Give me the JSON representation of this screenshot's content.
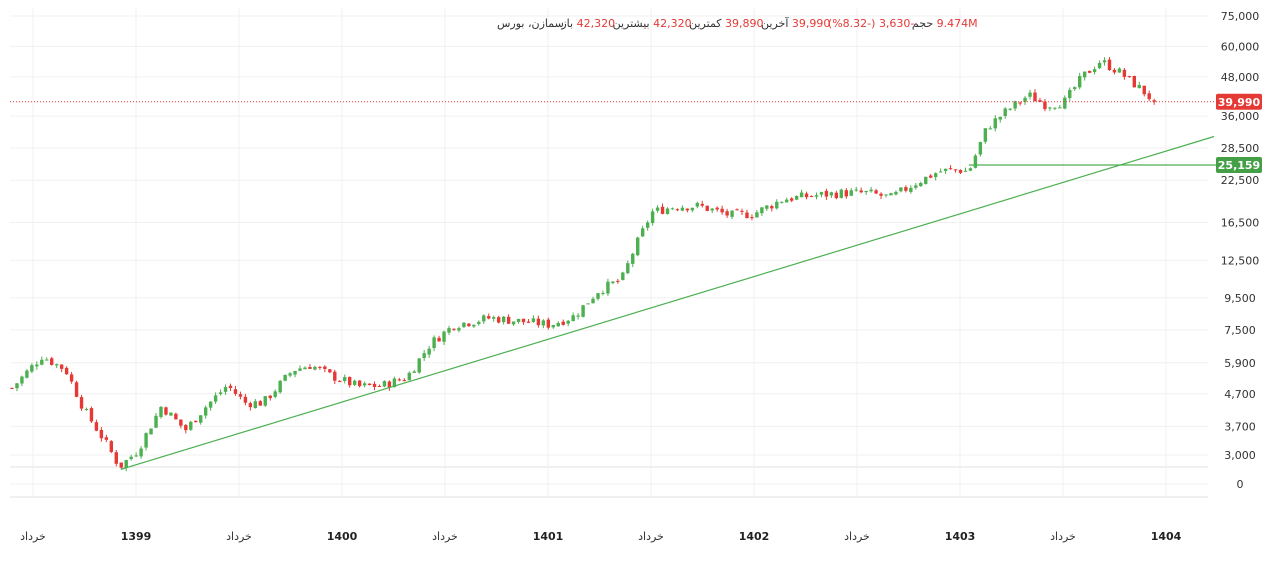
{
  "header": {
    "symbol": "سمازن، بورس",
    "open_label": "باز",
    "open_value": "42,320",
    "high_label": "بیشترین",
    "high_value": "42,320",
    "low_label": "کمترین",
    "low_value": "39,890",
    "last_label": "آخرین",
    "last_value": "39,990",
    "change": "-3,630 (-8.32%)",
    "volume_label": "حجم",
    "volume_value": "9.474M"
  },
  "colors": {
    "up": "#4caf50",
    "down": "#e53935",
    "trendline": "#4caf50",
    "last_price_badge": "#e53935",
    "level_badge": "#43a047",
    "grid": "#f0f0f0",
    "text": "#333333",
    "header_value": "#e53935"
  },
  "chart_data": {
    "type": "candlestick",
    "y_scale": "log",
    "y_ticks": [
      "75,000",
      "60,000",
      "48,000",
      "36,000",
      "28,500",
      "22,500",
      "16,500",
      "12,500",
      "9,500",
      "7,500",
      "5,900",
      "4,700",
      "3,700",
      "3,000",
      "0"
    ],
    "x_ticks": [
      {
        "label": "خرداد",
        "bold": false
      },
      {
        "label": "1399",
        "bold": true
      },
      {
        "label": "خرداد",
        "bold": false
      },
      {
        "label": "1400",
        "bold": true
      },
      {
        "label": "خرداد",
        "bold": false
      },
      {
        "label": "1401",
        "bold": true
      },
      {
        "label": "خرداد",
        "bold": false
      },
      {
        "label": "1402",
        "bold": true
      },
      {
        "label": "خرداد",
        "bold": false
      },
      {
        "label": "1403",
        "bold": true
      },
      {
        "label": "خرداد",
        "bold": false
      },
      {
        "label": "1404",
        "bold": true
      }
    ],
    "last_price": 39990,
    "last_price_label": "39,990",
    "level": 25159,
    "level_label": "25,159",
    "trendline": {
      "start": [
        0.091,
        2700
      ],
      "end": [
        1.0,
        31000
      ]
    },
    "price_anchors": [
      [
        0.0,
        4900
      ],
      [
        0.025,
        6200
      ],
      [
        0.045,
        5600
      ],
      [
        0.06,
        4200
      ],
      [
        0.078,
        3300
      ],
      [
        0.09,
        2750
      ],
      [
        0.105,
        3100
      ],
      [
        0.125,
        4300
      ],
      [
        0.145,
        3600
      ],
      [
        0.16,
        4200
      ],
      [
        0.18,
        5000
      ],
      [
        0.195,
        4400
      ],
      [
        0.21,
        4400
      ],
      [
        0.235,
        5600
      ],
      [
        0.25,
        5800
      ],
      [
        0.265,
        5400
      ],
      [
        0.29,
        4950
      ],
      [
        0.31,
        5000
      ],
      [
        0.33,
        5300
      ],
      [
        0.35,
        6800
      ],
      [
        0.37,
        7800
      ],
      [
        0.4,
        8200
      ],
      [
        0.425,
        8000
      ],
      [
        0.45,
        7800
      ],
      [
        0.47,
        8300
      ],
      [
        0.49,
        10000
      ],
      [
        0.51,
        10900
      ],
      [
        0.52,
        13500
      ],
      [
        0.535,
        17800
      ],
      [
        0.555,
        18600
      ],
      [
        0.575,
        18600
      ],
      [
        0.6,
        17400
      ],
      [
        0.62,
        17600
      ],
      [
        0.645,
        19600
      ],
      [
        0.67,
        20100
      ],
      [
        0.695,
        20500
      ],
      [
        0.715,
        20500
      ],
      [
        0.735,
        19800
      ],
      [
        0.755,
        22000
      ],
      [
        0.775,
        24000
      ],
      [
        0.79,
        24300
      ],
      [
        0.8,
        24000
      ],
      [
        0.815,
        33000
      ],
      [
        0.83,
        37000
      ],
      [
        0.85,
        42000
      ],
      [
        0.865,
        39000
      ],
      [
        0.88,
        40000
      ],
      [
        0.895,
        48000
      ],
      [
        0.91,
        54000
      ],
      [
        0.925,
        50000
      ],
      [
        0.945,
        43500
      ],
      [
        0.955,
        39990
      ]
    ]
  }
}
